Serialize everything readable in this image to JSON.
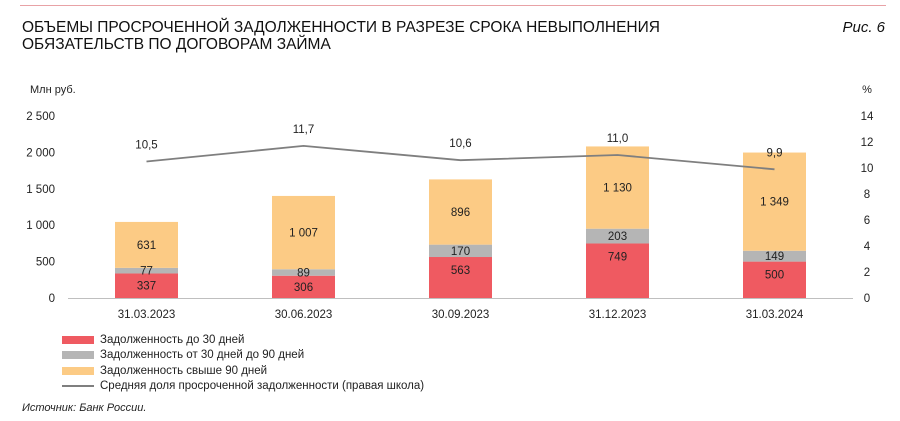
{
  "header": {
    "title": "ОБЪЕМЫ ПРОСРОЧЕННОЙ ЗАДОЛЖЕННОСТИ В РАЗРЕЗЕ СРОКА НЕВЫПОЛНЕНИЯ ОБЯЗАТЕЛЬСТВ ПО ДОГОВОРАМ ЗАЙМА",
    "figure_label": "Рис. 6"
  },
  "source": "Источник: Банк России.",
  "colors": {
    "under30": "#ef5a61",
    "30to90": "#b5b5b5",
    "over90": "#fccb85",
    "line": "#7f7f7f"
  },
  "chart_data": {
    "type": "bar",
    "stacked": true,
    "categories": [
      "31.03.2023",
      "30.06.2023",
      "30.09.2023",
      "31.12.2023",
      "31.03.2024"
    ],
    "series": [
      {
        "name": "Задолженность до 30 дней",
        "values": [
          337,
          306,
          563,
          749,
          500
        ],
        "labels": [
          "337",
          "306",
          "563",
          "749",
          "500"
        ],
        "color": "#ef5a61"
      },
      {
        "name": "Задолженность от 30 дней до 90 дней",
        "values": [
          77,
          89,
          170,
          203,
          149
        ],
        "labels": [
          "77",
          "89",
          "170",
          "203",
          "149"
        ],
        "color": "#b5b5b5"
      },
      {
        "name": "Задолженность свыше 90 дней",
        "values": [
          631,
          1007,
          896,
          1130,
          1349
        ],
        "labels": [
          "631",
          "1 007",
          "896",
          "1 130",
          "1 349"
        ],
        "color": "#fccb85"
      }
    ],
    "line_series": {
      "name": "Средняя доля просроченной задолженности (правая школа)",
      "values": [
        10.5,
        11.7,
        10.6,
        11.0,
        9.9
      ],
      "labels": [
        "10,5",
        "11,7",
        "10,6",
        "11,0",
        "9,9"
      ],
      "color": "#7f7f7f",
      "axis": "right"
    },
    "ylabel_left": "Млн руб.",
    "ylabel_right": "%",
    "ylim_left": [
      0,
      2500
    ],
    "ylim_right": [
      0,
      14
    ],
    "yticks_left": [
      "0",
      "500",
      "1 000",
      "1 500",
      "2 000",
      "2 500"
    ],
    "yticks_right": [
      "0",
      "2",
      "4",
      "6",
      "8",
      "10",
      "12",
      "14"
    ],
    "grid": false,
    "legend_position": "bottom-left"
  }
}
